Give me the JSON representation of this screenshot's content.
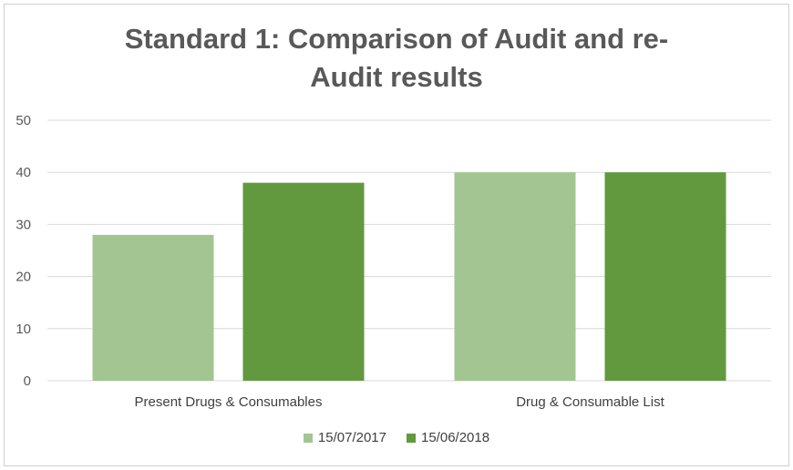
{
  "chart_data": {
    "type": "bar",
    "title_line1": "Standard 1: Comparison of Audit and re-",
    "title_line2": "Audit results",
    "categories": [
      "Present Drugs & Consumables",
      "Drug & Consumable List"
    ],
    "series": [
      {
        "name": "15/07/2017",
        "values": [
          28,
          40
        ],
        "color": "#a3c591"
      },
      {
        "name": "15/06/2018",
        "values": [
          38,
          40
        ],
        "color": "#62993e"
      }
    ],
    "ylim": [
      0,
      50
    ],
    "yticks": [
      0,
      10,
      20,
      30,
      40,
      50
    ],
    "grid": true,
    "legend_position": "bottom"
  }
}
